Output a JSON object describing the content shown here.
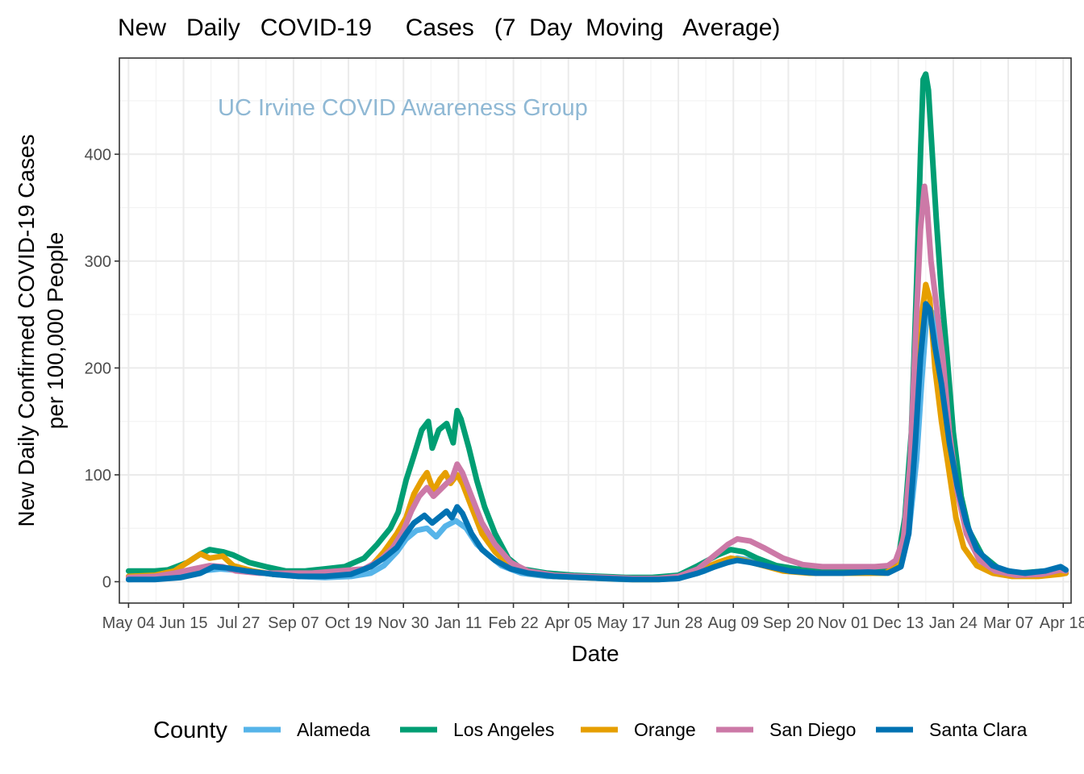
{
  "chart_data": {
    "type": "line",
    "title": "New   Daily   COVID-19     Cases   (7  Day  Moving   Average)",
    "xlabel": "Date",
    "ylabel": "New Daily Confirmed COVID-19 Cases",
    "ylabel2": "per 100,000 People",
    "annotation": "UC Irvine COVID Awareness Group",
    "annotation_color": "#8fb8d4",
    "legend_title": "County",
    "legend_position": "bottom",
    "grid": true,
    "ylim": [
      -20,
      490
    ],
    "y_ticks": [
      0,
      100,
      200,
      300,
      400
    ],
    "x_tick_labels": [
      "May 04",
      "Jun 15",
      "Jul 27",
      "Sep 07",
      "Oct 19",
      "Nov 30",
      "Jan 11",
      "Feb 22",
      "Apr 05",
      "May 17",
      "Jun 28",
      "Aug 09",
      "Sep 20",
      "Nov 01",
      "Dec 13",
      "Jan 24",
      "Mar 07",
      "Apr 18"
    ],
    "x_tick_days": [
      0,
      42,
      84,
      126,
      168,
      210,
      252,
      294,
      336,
      378,
      420,
      462,
      504,
      546,
      588,
      630,
      672,
      714
    ],
    "xlim_days": [
      -7,
      720
    ],
    "series": [
      {
        "name": "Alameda",
        "color": "#56b4e9",
        "points": [
          [
            0,
            2
          ],
          [
            20,
            3
          ],
          [
            40,
            5
          ],
          [
            55,
            10
          ],
          [
            70,
            12
          ],
          [
            90,
            10
          ],
          [
            110,
            7
          ],
          [
            130,
            5
          ],
          [
            150,
            4
          ],
          [
            170,
            5
          ],
          [
            185,
            8
          ],
          [
            195,
            15
          ],
          [
            205,
            28
          ],
          [
            212,
            40
          ],
          [
            220,
            48
          ],
          [
            228,
            50
          ],
          [
            235,
            42
          ],
          [
            242,
            52
          ],
          [
            250,
            57
          ],
          [
            258,
            50
          ],
          [
            266,
            35
          ],
          [
            275,
            25
          ],
          [
            285,
            15
          ],
          [
            300,
            8
          ],
          [
            320,
            5
          ],
          [
            340,
            5
          ],
          [
            360,
            3
          ],
          [
            380,
            2
          ],
          [
            400,
            2
          ],
          [
            420,
            3
          ],
          [
            440,
            10
          ],
          [
            455,
            18
          ],
          [
            465,
            22
          ],
          [
            475,
            20
          ],
          [
            490,
            15
          ],
          [
            505,
            10
          ],
          [
            525,
            8
          ],
          [
            545,
            8
          ],
          [
            565,
            8
          ],
          [
            580,
            9
          ],
          [
            590,
            14
          ],
          [
            596,
            45
          ],
          [
            602,
            115
          ],
          [
            606,
            190
          ],
          [
            610,
            255
          ],
          [
            614,
            252
          ],
          [
            618,
            225
          ],
          [
            622,
            185
          ],
          [
            628,
            130
          ],
          [
            634,
            85
          ],
          [
            640,
            50
          ],
          [
            648,
            30
          ],
          [
            660,
            15
          ],
          [
            672,
            8
          ],
          [
            685,
            7
          ],
          [
            700,
            9
          ],
          [
            712,
            12
          ],
          [
            716,
            10
          ]
        ]
      },
      {
        "name": "Los Angeles",
        "color": "#009e73",
        "points": [
          [
            0,
            10
          ],
          [
            20,
            10
          ],
          [
            30,
            11
          ],
          [
            45,
            18
          ],
          [
            55,
            26
          ],
          [
            62,
            30
          ],
          [
            72,
            28
          ],
          [
            80,
            25
          ],
          [
            92,
            18
          ],
          [
            105,
            14
          ],
          [
            120,
            10
          ],
          [
            135,
            10
          ],
          [
            150,
            12
          ],
          [
            165,
            14
          ],
          [
            180,
            22
          ],
          [
            190,
            35
          ],
          [
            200,
            50
          ],
          [
            206,
            65
          ],
          [
            212,
            95
          ],
          [
            218,
            118
          ],
          [
            224,
            142
          ],
          [
            229,
            150
          ],
          [
            232,
            125
          ],
          [
            237,
            142
          ],
          [
            243,
            148
          ],
          [
            248,
            130
          ],
          [
            251,
            160
          ],
          [
            254,
            152
          ],
          [
            260,
            125
          ],
          [
            266,
            95
          ],
          [
            272,
            70
          ],
          [
            280,
            45
          ],
          [
            290,
            22
          ],
          [
            300,
            12
          ],
          [
            320,
            8
          ],
          [
            340,
            6
          ],
          [
            360,
            5
          ],
          [
            380,
            4
          ],
          [
            400,
            4
          ],
          [
            420,
            6
          ],
          [
            435,
            15
          ],
          [
            450,
            25
          ],
          [
            460,
            30
          ],
          [
            470,
            28
          ],
          [
            480,
            22
          ],
          [
            495,
            15
          ],
          [
            510,
            12
          ],
          [
            530,
            11
          ],
          [
            550,
            10
          ],
          [
            570,
            10
          ],
          [
            580,
            10
          ],
          [
            588,
            22
          ],
          [
            593,
            60
          ],
          [
            598,
            140
          ],
          [
            602,
            280
          ],
          [
            605,
            400
          ],
          [
            607,
            470
          ],
          [
            609,
            475
          ],
          [
            611,
            460
          ],
          [
            613,
            420
          ],
          [
            617,
            340
          ],
          [
            621,
            270
          ],
          [
            625,
            215
          ],
          [
            630,
            140
          ],
          [
            636,
            80
          ],
          [
            642,
            48
          ],
          [
            652,
            25
          ],
          [
            665,
            12
          ],
          [
            680,
            8
          ],
          [
            700,
            10
          ],
          [
            712,
            12
          ],
          [
            716,
            8
          ]
        ]
      },
      {
        "name": "Orange",
        "color": "#e69f00",
        "points": [
          [
            0,
            5
          ],
          [
            20,
            6
          ],
          [
            35,
            10
          ],
          [
            45,
            18
          ],
          [
            55,
            26
          ],
          [
            62,
            22
          ],
          [
            72,
            24
          ],
          [
            80,
            15
          ],
          [
            95,
            10
          ],
          [
            110,
            7
          ],
          [
            130,
            6
          ],
          [
            150,
            6
          ],
          [
            170,
            8
          ],
          [
            185,
            14
          ],
          [
            195,
            28
          ],
          [
            205,
            45
          ],
          [
            212,
            60
          ],
          [
            218,
            82
          ],
          [
            224,
            95
          ],
          [
            228,
            102
          ],
          [
            233,
            85
          ],
          [
            238,
            96
          ],
          [
            242,
            102
          ],
          [
            246,
            92
          ],
          [
            251,
            100
          ],
          [
            255,
            92
          ],
          [
            262,
            70
          ],
          [
            270,
            45
          ],
          [
            280,
            28
          ],
          [
            292,
            14
          ],
          [
            305,
            8
          ],
          [
            325,
            5
          ],
          [
            345,
            4
          ],
          [
            365,
            3
          ],
          [
            385,
            2
          ],
          [
            405,
            2
          ],
          [
            420,
            4
          ],
          [
            435,
            10
          ],
          [
            450,
            18
          ],
          [
            460,
            22
          ],
          [
            470,
            20
          ],
          [
            485,
            15
          ],
          [
            500,
            10
          ],
          [
            520,
            8
          ],
          [
            540,
            8
          ],
          [
            560,
            8
          ],
          [
            578,
            8
          ],
          [
            588,
            15
          ],
          [
            594,
            55
          ],
          [
            600,
            150
          ],
          [
            605,
            240
          ],
          [
            609,
            278
          ],
          [
            612,
            265
          ],
          [
            616,
            200
          ],
          [
            621,
            150
          ],
          [
            626,
            110
          ],
          [
            632,
            60
          ],
          [
            638,
            32
          ],
          [
            648,
            15
          ],
          [
            660,
            8
          ],
          [
            675,
            5
          ],
          [
            695,
            5
          ],
          [
            712,
            7
          ],
          [
            716,
            8
          ]
        ]
      },
      {
        "name": "San Diego",
        "color": "#cc79a7",
        "points": [
          [
            0,
            4
          ],
          [
            20,
            5
          ],
          [
            35,
            8
          ],
          [
            50,
            12
          ],
          [
            62,
            15
          ],
          [
            72,
            14
          ],
          [
            82,
            10
          ],
          [
            100,
            8
          ],
          [
            120,
            8
          ],
          [
            140,
            8
          ],
          [
            160,
            10
          ],
          [
            180,
            12
          ],
          [
            192,
            20
          ],
          [
            202,
            32
          ],
          [
            210,
            48
          ],
          [
            216,
            66
          ],
          [
            222,
            80
          ],
          [
            228,
            88
          ],
          [
            233,
            80
          ],
          [
            238,
            86
          ],
          [
            243,
            92
          ],
          [
            247,
            96
          ],
          [
            251,
            110
          ],
          [
            255,
            102
          ],
          [
            262,
            80
          ],
          [
            270,
            55
          ],
          [
            280,
            35
          ],
          [
            292,
            18
          ],
          [
            305,
            10
          ],
          [
            325,
            6
          ],
          [
            345,
            5
          ],
          [
            365,
            4
          ],
          [
            385,
            3
          ],
          [
            405,
            3
          ],
          [
            420,
            5
          ],
          [
            435,
            12
          ],
          [
            448,
            25
          ],
          [
            458,
            35
          ],
          [
            465,
            40
          ],
          [
            475,
            38
          ],
          [
            485,
            32
          ],
          [
            500,
            22
          ],
          [
            515,
            16
          ],
          [
            530,
            14
          ],
          [
            550,
            14
          ],
          [
            570,
            14
          ],
          [
            580,
            15
          ],
          [
            586,
            20
          ],
          [
            592,
            40
          ],
          [
            597,
            110
          ],
          [
            601,
            225
          ],
          [
            605,
            330
          ],
          [
            608,
            370
          ],
          [
            610,
            350
          ],
          [
            613,
            300
          ],
          [
            617,
            260
          ],
          [
            622,
            210
          ],
          [
            627,
            140
          ],
          [
            633,
            85
          ],
          [
            640,
            45
          ],
          [
            650,
            20
          ],
          [
            662,
            10
          ],
          [
            678,
            6
          ],
          [
            698,
            7
          ],
          [
            712,
            11
          ],
          [
            716,
            10
          ]
        ]
      },
      {
        "name": "Santa Clara",
        "color": "#0072b2",
        "points": [
          [
            0,
            2
          ],
          [
            20,
            2
          ],
          [
            40,
            4
          ],
          [
            55,
            8
          ],
          [
            65,
            14
          ],
          [
            75,
            13
          ],
          [
            90,
            10
          ],
          [
            110,
            7
          ],
          [
            130,
            5
          ],
          [
            150,
            5
          ],
          [
            170,
            7
          ],
          [
            185,
            14
          ],
          [
            195,
            22
          ],
          [
            205,
            32
          ],
          [
            212,
            45
          ],
          [
            218,
            55
          ],
          [
            226,
            62
          ],
          [
            232,
            55
          ],
          [
            237,
            60
          ],
          [
            243,
            66
          ],
          [
            247,
            60
          ],
          [
            251,
            70
          ],
          [
            255,
            64
          ],
          [
            262,
            45
          ],
          [
            270,
            30
          ],
          [
            280,
            20
          ],
          [
            292,
            12
          ],
          [
            305,
            8
          ],
          [
            325,
            5
          ],
          [
            345,
            4
          ],
          [
            365,
            3
          ],
          [
            385,
            2
          ],
          [
            405,
            2
          ],
          [
            420,
            3
          ],
          [
            435,
            8
          ],
          [
            448,
            14
          ],
          [
            458,
            18
          ],
          [
            465,
            20
          ],
          [
            475,
            18
          ],
          [
            490,
            14
          ],
          [
            505,
            10
          ],
          [
            525,
            8
          ],
          [
            545,
            8
          ],
          [
            565,
            9
          ],
          [
            580,
            8
          ],
          [
            590,
            14
          ],
          [
            596,
            45
          ],
          [
            601,
            130
          ],
          [
            605,
            210
          ],
          [
            609,
            260
          ],
          [
            612,
            255
          ],
          [
            616,
            220
          ],
          [
            621,
            185
          ],
          [
            627,
            130
          ],
          [
            633,
            90
          ],
          [
            640,
            55
          ],
          [
            648,
            30
          ],
          [
            660,
            15
          ],
          [
            672,
            10
          ],
          [
            685,
            8
          ],
          [
            700,
            10
          ],
          [
            712,
            14
          ],
          [
            716,
            11
          ]
        ]
      }
    ]
  }
}
